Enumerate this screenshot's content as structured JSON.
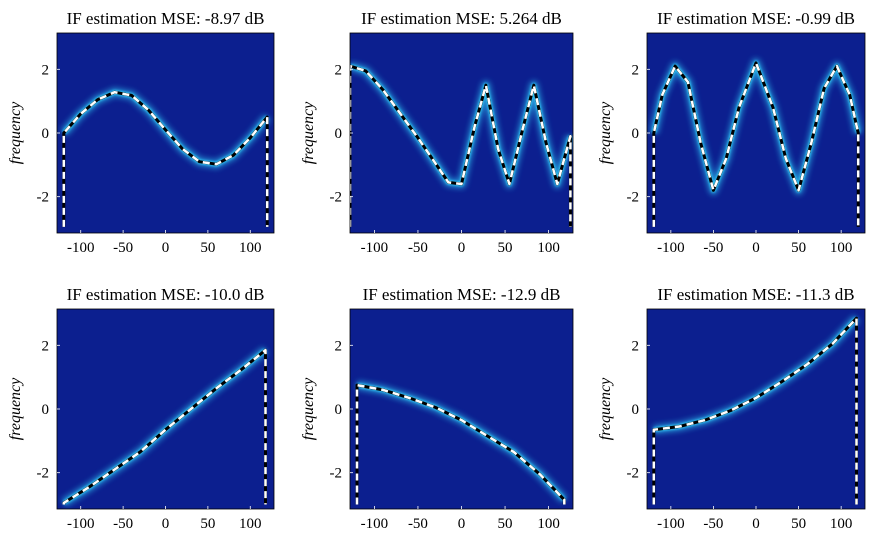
{
  "chart_data": [
    {
      "type": "heatmap",
      "title": "IF estimation MSE: -8.97 dB",
      "ylabel": "frequency",
      "xlim": [
        -128,
        128
      ],
      "ylim": [
        -3.14,
        3.14
      ],
      "xticks": [
        "-100",
        "-50",
        "0",
        "50",
        "100"
      ],
      "yticks": [
        "-2",
        "0",
        "2"
      ],
      "x": [
        -120,
        -100,
        -80,
        -60,
        -40,
        -20,
        0,
        20,
        40,
        60,
        80,
        100,
        120
      ],
      "y": [
        0.0,
        0.6,
        1.05,
        1.28,
        1.18,
        0.72,
        0.1,
        -0.5,
        -0.9,
        -0.98,
        -0.7,
        -0.15,
        0.5
      ],
      "true_if_start": -2.95,
      "true_if_end": -2.95
    },
    {
      "type": "heatmap",
      "title": "IF estimation MSE: 5.264 dB",
      "ylabel": "frequency",
      "xlim": [
        -128,
        128
      ],
      "ylim": [
        -3.14,
        3.14
      ],
      "xticks": [
        "-100",
        "-50",
        "0",
        "50",
        "100"
      ],
      "yticks": [
        "-2",
        "0",
        "2"
      ],
      "x": [
        -128,
        -110,
        -90,
        -70,
        -50,
        -30,
        -15,
        0,
        15,
        28,
        42,
        55,
        70,
        83,
        97,
        110,
        125
      ],
      "y": [
        2.1,
        1.95,
        1.35,
        0.6,
        -0.15,
        -0.95,
        -1.55,
        -1.6,
        0.2,
        1.5,
        -0.5,
        -1.6,
        0.1,
        1.5,
        -0.3,
        -1.6,
        -0.1
      ],
      "true_if_start": -2.95,
      "true_if_end": -2.95
    },
    {
      "type": "heatmap",
      "title": "IF estimation MSE: -0.99 dB",
      "ylabel": "frequency",
      "xlim": [
        -128,
        128
      ],
      "ylim": [
        -3.14,
        3.14
      ],
      "xticks": [
        "-100",
        "-50",
        "0",
        "50",
        "100"
      ],
      "yticks": [
        "-2",
        "0",
        "2"
      ],
      "x": [
        -120,
        -110,
        -95,
        -80,
        -65,
        -50,
        -35,
        -20,
        0,
        20,
        35,
        50,
        65,
        80,
        95,
        110,
        120
      ],
      "y": [
        0.0,
        1.2,
        2.1,
        1.6,
        -0.3,
        -1.8,
        -0.8,
        0.8,
        2.2,
        0.8,
        -0.8,
        -1.8,
        -0.3,
        1.4,
        2.1,
        1.2,
        0.0
      ],
      "true_if_start": -2.95,
      "true_if_end": -2.95
    },
    {
      "type": "heatmap",
      "title": "IF estimation MSE: -10.0 dB",
      "ylabel": "frequency",
      "xlim": [
        -128,
        128
      ],
      "ylim": [
        -3.14,
        3.14
      ],
      "xticks": [
        "-100",
        "-50",
        "0",
        "50",
        "100"
      ],
      "yticks": [
        "-2",
        "0",
        "2"
      ],
      "x": [
        -120,
        -90,
        -60,
        -30,
        0,
        30,
        60,
        90,
        118
      ],
      "y": [
        -2.95,
        -2.45,
        -1.9,
        -1.35,
        -0.65,
        0.0,
        0.65,
        1.25,
        1.85
      ],
      "true_if_start": -3.0,
      "true_if_end": -3.0
    },
    {
      "type": "heatmap",
      "title": "IF estimation MSE: -12.9 dB",
      "ylabel": "frequency",
      "xlim": [
        -128,
        128
      ],
      "ylim": [
        -3.14,
        3.14
      ],
      "xticks": [
        "-100",
        "-50",
        "0",
        "50",
        "100"
      ],
      "yticks": [
        "-2",
        "0",
        "2"
      ],
      "x": [
        -120,
        -90,
        -60,
        -30,
        0,
        30,
        60,
        90,
        118
      ],
      "y": [
        0.75,
        0.6,
        0.35,
        0.05,
        -0.35,
        -0.85,
        -1.35,
        -2.05,
        -2.85
      ],
      "true_if_start": -3.0,
      "true_if_end": -3.0
    },
    {
      "type": "heatmap",
      "title": "IF estimation MSE: -11.3 dB",
      "ylabel": "frequency",
      "xlim": [
        -128,
        128
      ],
      "ylim": [
        -3.14,
        3.14
      ],
      "xticks": [
        "-100",
        "-50",
        "0",
        "50",
        "100"
      ],
      "yticks": [
        "-2",
        "0",
        "2"
      ],
      "x": [
        -120,
        -90,
        -60,
        -30,
        0,
        30,
        60,
        90,
        118
      ],
      "y": [
        -0.65,
        -0.55,
        -0.35,
        -0.05,
        0.35,
        0.85,
        1.4,
        2.05,
        2.85
      ],
      "true_if_start": -3.0,
      "true_if_end": -3.0
    }
  ],
  "colors": {
    "background": "#0c1f8f",
    "ridge": "#33d6ff",
    "ridge_core": "#ffffff",
    "ridge_hot": "#d94f1a",
    "estimate": "#ffffff",
    "truth": "#000000"
  }
}
